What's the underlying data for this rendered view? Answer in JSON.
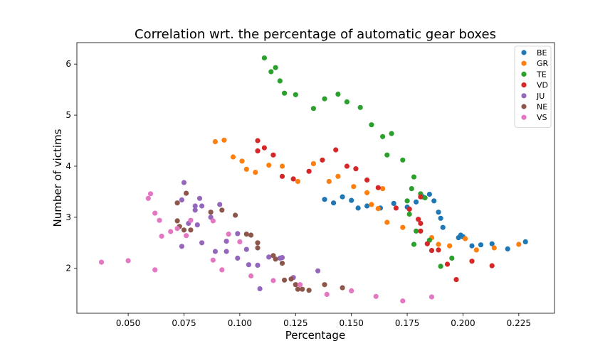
{
  "chart_data": {
    "type": "scatter",
    "title": "Correlation wrt. the percentage of automatic gear boxes",
    "xlabel": "Percentage",
    "ylabel": "Number of victims",
    "xlim": [
      0.027,
      0.241
    ],
    "ylim": [
      1.12,
      6.42
    ],
    "xticks": [
      0.05,
      0.075,
      0.1,
      0.125,
      0.15,
      0.175,
      0.2,
      0.225
    ],
    "xtick_labels": [
      "0.050",
      "0.075",
      "0.100",
      "0.125",
      "0.150",
      "0.175",
      "0.200",
      "0.225"
    ],
    "yticks": [
      2,
      3,
      4,
      5,
      6
    ],
    "ytick_labels": [
      "2",
      "3",
      "4",
      "5",
      "6"
    ],
    "grid": false,
    "legend_position": "top-right",
    "series": [
      {
        "name": "BE",
        "color": "#1f77b4",
        "points": [
          [
            0.138,
            3.35
          ],
          [
            0.142,
            3.28
          ],
          [
            0.146,
            3.4
          ],
          [
            0.15,
            3.33
          ],
          [
            0.153,
            3.18
          ],
          [
            0.157,
            3.22
          ],
          [
            0.163,
            3.18
          ],
          [
            0.169,
            3.27
          ],
          [
            0.175,
            3.2
          ],
          [
            0.179,
            3.3
          ],
          [
            0.182,
            3.4
          ],
          [
            0.185,
            3.45
          ],
          [
            0.187,
            3.32
          ],
          [
            0.189,
            3.1
          ],
          [
            0.19,
            2.98
          ],
          [
            0.191,
            2.8
          ],
          [
            0.198,
            2.6
          ],
          [
            0.199,
            2.65
          ],
          [
            0.2,
            2.62
          ],
          [
            0.204,
            2.44
          ],
          [
            0.208,
            2.46
          ],
          [
            0.213,
            2.48
          ],
          [
            0.22,
            2.38
          ],
          [
            0.228,
            2.52
          ]
        ]
      },
      {
        "name": "GR",
        "color": "#ff7f0e",
        "points": [
          [
            0.089,
            4.48
          ],
          [
            0.093,
            4.51
          ],
          [
            0.097,
            4.18
          ],
          [
            0.101,
            4.1
          ],
          [
            0.103,
            3.94
          ],
          [
            0.107,
            3.88
          ],
          [
            0.113,
            4.02
          ],
          [
            0.119,
            4.0
          ],
          [
            0.126,
            3.7
          ],
          [
            0.133,
            4.05
          ],
          [
            0.14,
            3.7
          ],
          [
            0.144,
            3.8
          ],
          [
            0.151,
            3.6
          ],
          [
            0.157,
            3.48
          ],
          [
            0.159,
            3.25
          ],
          [
            0.162,
            3.17
          ],
          [
            0.164,
            3.56
          ],
          [
            0.166,
            2.9
          ],
          [
            0.173,
            2.8
          ],
          [
            0.186,
            2.6
          ],
          [
            0.189,
            2.47
          ],
          [
            0.194,
            2.44
          ],
          [
            0.201,
            2.58
          ],
          [
            0.206,
            2.36
          ],
          [
            0.214,
            2.4
          ],
          [
            0.225,
            2.47
          ]
        ]
      },
      {
        "name": "TE",
        "color": "#2ca02c",
        "points": [
          [
            0.111,
            6.12
          ],
          [
            0.114,
            5.85
          ],
          [
            0.116,
            5.93
          ],
          [
            0.118,
            5.67
          ],
          [
            0.12,
            5.43
          ],
          [
            0.125,
            5.4
          ],
          [
            0.133,
            5.13
          ],
          [
            0.138,
            5.32
          ],
          [
            0.144,
            5.41
          ],
          [
            0.148,
            5.26
          ],
          [
            0.154,
            5.15
          ],
          [
            0.159,
            4.81
          ],
          [
            0.164,
            4.58
          ],
          [
            0.168,
            4.64
          ],
          [
            0.166,
            4.22
          ],
          [
            0.173,
            4.12
          ],
          [
            0.178,
            3.79
          ],
          [
            0.177,
            3.56
          ],
          [
            0.181,
            3.46
          ],
          [
            0.183,
            3.38
          ],
          [
            0.175,
            3.32
          ],
          [
            0.176,
            3.06
          ],
          [
            0.179,
            2.73
          ],
          [
            0.178,
            2.47
          ],
          [
            0.185,
            2.55
          ],
          [
            0.19,
            2.04
          ],
          [
            0.195,
            2.2
          ]
        ]
      },
      {
        "name": "VD",
        "color": "#d62728",
        "points": [
          [
            0.108,
            4.5
          ],
          [
            0.108,
            4.3
          ],
          [
            0.111,
            4.36
          ],
          [
            0.115,
            4.22
          ],
          [
            0.119,
            3.8
          ],
          [
            0.124,
            3.75
          ],
          [
            0.131,
            3.9
          ],
          [
            0.137,
            4.12
          ],
          [
            0.143,
            4.32
          ],
          [
            0.148,
            4.0
          ],
          [
            0.152,
            3.95
          ],
          [
            0.157,
            3.73
          ],
          [
            0.162,
            3.58
          ],
          [
            0.17,
            3.18
          ],
          [
            0.176,
            3.16
          ],
          [
            0.18,
            2.96
          ],
          [
            0.181,
            2.88
          ],
          [
            0.181,
            2.73
          ],
          [
            0.184,
            2.48
          ],
          [
            0.186,
            2.35
          ],
          [
            0.189,
            2.36
          ],
          [
            0.193,
            2.08
          ],
          [
            0.197,
            1.78
          ],
          [
            0.204,
            2.14
          ],
          [
            0.213,
            2.05
          ],
          [
            0.181,
            3.4
          ]
        ]
      },
      {
        "name": "JU",
        "color": "#9467bd",
        "points": [
          [
            0.075,
            3.68
          ],
          [
            0.074,
            3.34
          ],
          [
            0.08,
            3.22
          ],
          [
            0.083,
            3.22
          ],
          [
            0.082,
            3.37
          ],
          [
            0.087,
            3.0
          ],
          [
            0.091,
            3.25
          ],
          [
            0.08,
            3.14
          ],
          [
            0.077,
            2.88
          ],
          [
            0.081,
            2.85
          ],
          [
            0.074,
            2.43
          ],
          [
            0.083,
            2.5
          ],
          [
            0.089,
            2.33
          ],
          [
            0.094,
            2.33
          ],
          [
            0.094,
            2.53
          ],
          [
            0.099,
            2.68
          ],
          [
            0.099,
            2.2
          ],
          [
            0.103,
            2.37
          ],
          [
            0.104,
            2.07
          ],
          [
            0.108,
            2.06
          ],
          [
            0.109,
            1.6
          ],
          [
            0.113,
            2.22
          ],
          [
            0.118,
            2.2
          ],
          [
            0.119,
            2.21
          ],
          [
            0.124,
            1.82
          ],
          [
            0.135,
            1.95
          ]
        ]
      },
      {
        "name": "NE",
        "color": "#8c564b",
        "points": [
          [
            0.072,
            3.28
          ],
          [
            0.076,
            3.47
          ],
          [
            0.072,
            2.93
          ],
          [
            0.073,
            2.82
          ],
          [
            0.075,
            2.75
          ],
          [
            0.078,
            2.75
          ],
          [
            0.087,
            3.1
          ],
          [
            0.092,
            3.14
          ],
          [
            0.098,
            3.04
          ],
          [
            0.103,
            2.67
          ],
          [
            0.105,
            2.65
          ],
          [
            0.108,
            2.5
          ],
          [
            0.108,
            2.4
          ],
          [
            0.115,
            2.25
          ],
          [
            0.116,
            2.18
          ],
          [
            0.119,
            2.1
          ],
          [
            0.12,
            1.77
          ],
          [
            0.123,
            1.79
          ],
          [
            0.125,
            1.68
          ],
          [
            0.126,
            1.59
          ],
          [
            0.128,
            1.59
          ],
          [
            0.131,
            1.57
          ],
          [
            0.138,
            1.68
          ],
          [
            0.146,
            1.62
          ]
        ]
      },
      {
        "name": "VS",
        "color": "#e377c2",
        "points": [
          [
            0.038,
            2.12
          ],
          [
            0.05,
            2.15
          ],
          [
            0.059,
            3.37
          ],
          [
            0.06,
            3.46
          ],
          [
            0.062,
            3.08
          ],
          [
            0.064,
            2.94
          ],
          [
            0.065,
            2.63
          ],
          [
            0.069,
            2.72
          ],
          [
            0.062,
            1.97
          ],
          [
            0.072,
            2.78
          ],
          [
            0.076,
            2.64
          ],
          [
            0.078,
            2.94
          ],
          [
            0.088,
            2.93
          ],
          [
            0.088,
            2.16
          ],
          [
            0.092,
            1.97
          ],
          [
            0.095,
            2.67
          ],
          [
            0.1,
            2.52
          ],
          [
            0.105,
            1.85
          ],
          [
            0.115,
            1.76
          ],
          [
            0.127,
            1.68
          ],
          [
            0.139,
            1.49
          ],
          [
            0.15,
            1.56
          ],
          [
            0.161,
            1.45
          ],
          [
            0.173,
            1.36
          ],
          [
            0.186,
            1.44
          ]
        ]
      }
    ]
  }
}
